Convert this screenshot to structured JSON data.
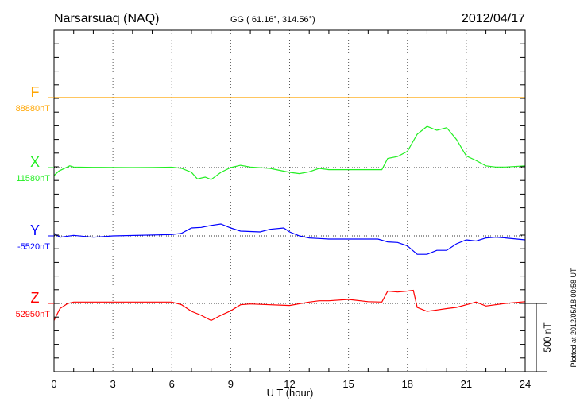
{
  "header": {
    "station": "Narsarsuaq (NAQ)",
    "coords": "GG ( 61.16°, 314.56°)",
    "date": "2012/04/17"
  },
  "plotted_at": "Plotted at 2012/05/18 00:58 UT",
  "scale_label": "500 nT",
  "chart_data": {
    "type": "line",
    "title": "Narsarsuaq (NAQ) 2012/04/17",
    "xlabel": "U T (hour)",
    "xlim": [
      0,
      24
    ],
    "xticks": [
      "0",
      "3",
      "6",
      "9",
      "12",
      "15",
      "18",
      "21",
      "24"
    ],
    "grid": "dotted at 3-hour intervals and at each component baseline",
    "scale_nT": 500,
    "series": [
      {
        "name": "F",
        "baseline_label": "88880nT",
        "baseline": 88880,
        "color": "#ffa500",
        "x": [
          0,
          24
        ],
        "dev": [
          0,
          0
        ]
      },
      {
        "name": "X",
        "baseline_label": "11580nT",
        "baseline": 11580,
        "color": "#22ee22",
        "x": [
          0,
          0.25,
          0.8,
          1,
          2,
          3,
          4,
          5,
          6,
          6.5,
          7,
          7.3,
          7.7,
          8,
          8.5,
          9,
          9.5,
          10,
          11,
          12,
          12.5,
          13,
          13.5,
          14,
          15,
          16,
          16.7,
          17,
          17.5,
          18,
          18.5,
          19,
          19.5,
          20,
          20.5,
          21,
          21.5,
          22,
          22.5,
          23,
          24
        ],
        "dev": [
          -58,
          -25,
          13,
          4,
          2,
          1,
          0,
          1,
          3,
          -6,
          -35,
          -83,
          -70,
          -88,
          -35,
          0,
          17,
          4,
          -6,
          -35,
          -44,
          -31,
          -6,
          -15,
          -15,
          -15,
          -15,
          67,
          81,
          119,
          244,
          302,
          273,
          292,
          206,
          85,
          52,
          13,
          4,
          4,
          13
        ]
      },
      {
        "name": "Y",
        "baseline_label": "-5520nT",
        "baseline": -5520,
        "color": "#0000ff",
        "x": [
          0,
          0.3,
          1,
          2,
          3,
          6,
          6.5,
          7,
          7.5,
          8,
          8.5,
          9,
          9.5,
          10.5,
          11,
          11.7,
          12,
          12.5,
          13,
          13.5,
          14,
          15,
          16.5,
          17,
          17.5,
          18,
          18.5,
          19,
          19.5,
          20,
          20.5,
          21,
          21.5,
          22,
          22.5,
          23,
          24
        ],
        "dev": [
          19,
          -10,
          4,
          -10,
          0,
          10,
          19,
          58,
          62,
          77,
          87,
          58,
          35,
          29,
          48,
          58,
          29,
          0,
          -15,
          -19,
          -23,
          -23,
          -23,
          -44,
          -48,
          -73,
          -135,
          -135,
          -106,
          -106,
          -58,
          -29,
          -38,
          -15,
          -10,
          -15,
          -29
        ]
      },
      {
        "name": "Z",
        "baseline_label": "52950nT",
        "baseline": 52950,
        "color": "#ff0000",
        "x": [
          0,
          0.3,
          0.7,
          1,
          3,
          6,
          6.5,
          7,
          7.5,
          8,
          8.5,
          9,
          9.5,
          10,
          12,
          13,
          13.5,
          14,
          15,
          16,
          16.7,
          17,
          17.5,
          18,
          18.3,
          18.5,
          19,
          19.5,
          20,
          20.5,
          21,
          21.5,
          22,
          23,
          24
        ],
        "dev": [
          -125,
          -38,
          0,
          10,
          10,
          10,
          -10,
          -58,
          -87,
          -125,
          -87,
          -54,
          -10,
          -4,
          -15,
          10,
          19,
          19,
          29,
          13,
          10,
          90,
          83,
          90,
          96,
          -29,
          -58,
          -48,
          -38,
          -29,
          -10,
          10,
          -19,
          0,
          13
        ]
      }
    ]
  }
}
